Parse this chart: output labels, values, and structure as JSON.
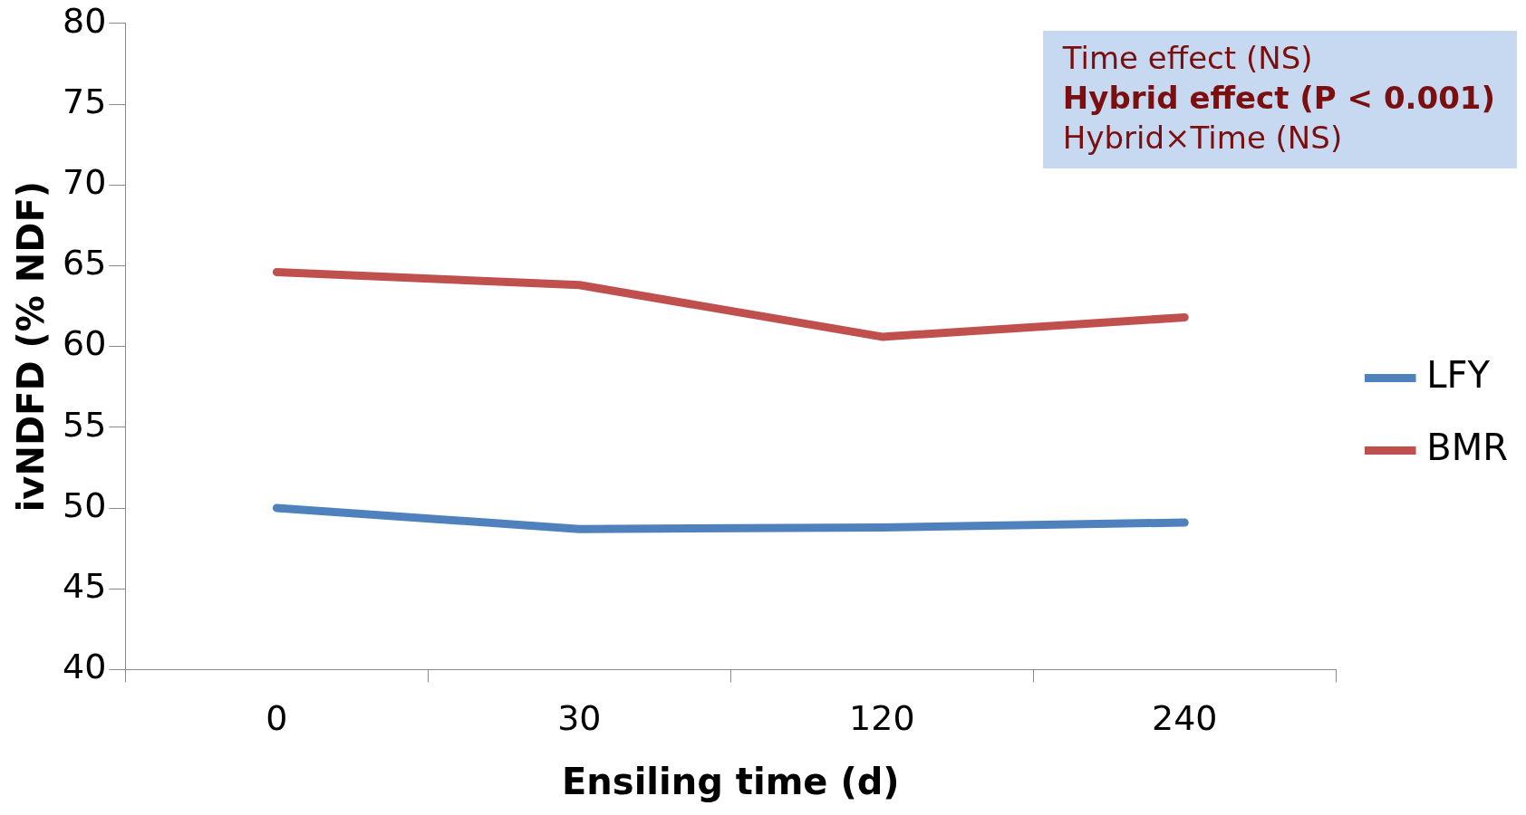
{
  "chart_data": {
    "type": "line",
    "xlabel": "Ensiling time (d)",
    "ylabel": "ivNDFD (% NDF)",
    "categories": [
      "0",
      "30",
      "120",
      "240"
    ],
    "series": [
      {
        "name": "LFY",
        "color": "#4f81bd",
        "values": [
          50.0,
          48.7,
          48.8,
          49.1
        ]
      },
      {
        "name": "BMR",
        "color": "#c0504d",
        "values": [
          64.6,
          63.8,
          60.6,
          61.8
        ]
      }
    ],
    "ylim": [
      40,
      80
    ],
    "yticks": [
      40,
      45,
      50,
      55,
      60,
      65,
      70,
      75,
      80
    ],
    "grid": false,
    "legend": "right",
    "marker": "none",
    "line_style": "solid",
    "annotations": [
      "Time effect (NS)",
      "Hybrid effect (P < 0.001)",
      "Hybrid×Time (NS)"
    ]
  }
}
